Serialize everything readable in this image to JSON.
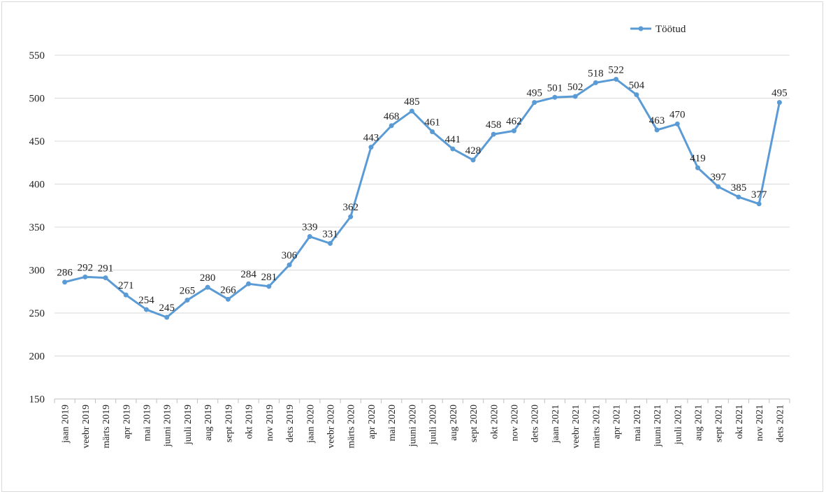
{
  "chart_data": {
    "type": "line",
    "title": "",
    "xlabel": "",
    "ylabel": "",
    "ylim": [
      150,
      550
    ],
    "yticks": [
      150,
      200,
      250,
      300,
      350,
      400,
      450,
      500,
      550
    ],
    "grid": true,
    "legend_position": "top-right",
    "categories": [
      "jaan 2019",
      "veebr 2019",
      "märts 2019",
      "apr 2019",
      "mai 2019",
      "juuni 2019",
      "juuli 2019",
      "aug 2019",
      "sept 2019",
      "okt 2019",
      "nov 2019",
      "dets 2019",
      "jaan 2020",
      "veebr 2020",
      "märts 2020",
      "apr 2020",
      "mai 2020",
      "juuni 2020",
      "juuli 2020",
      "aug 2020",
      "sept 2020",
      "okt 2020",
      "nov 2020",
      "dets 2020",
      "jaan 2021",
      "veebr 2021",
      "märts 2021",
      "apr 2021",
      "mai 2021",
      "juuni 2021",
      "juuli 2021",
      "aug 2021",
      "sept 2021",
      "okt 2021",
      "nov 2021",
      "dets 2021"
    ],
    "series": [
      {
        "name": "Töötud",
        "color": "#5b9bd5",
        "values": [
          286,
          292,
          291,
          271,
          254,
          245,
          265,
          280,
          266,
          284,
          281,
          306,
          339,
          331,
          362,
          443,
          468,
          485,
          461,
          441,
          428,
          458,
          462,
          495,
          501,
          502,
          518,
          522,
          504,
          463,
          470,
          419,
          397,
          385,
          377,
          495
        ]
      }
    ]
  }
}
